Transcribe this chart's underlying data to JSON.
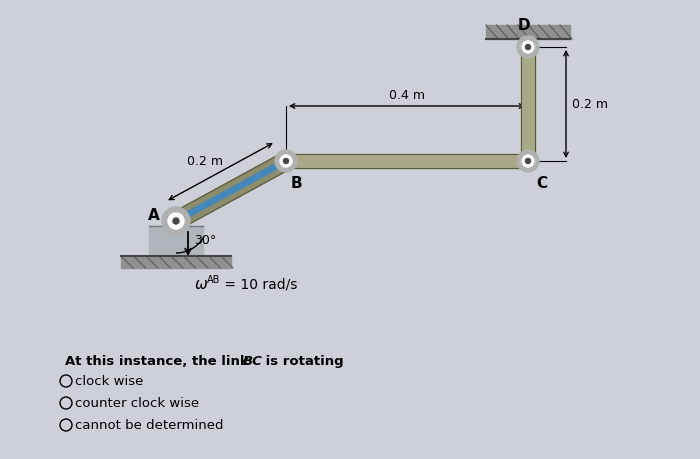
{
  "bg_color": "#cdd0d8",
  "dim_AB": "0.2 m",
  "dim_BC": "0.4 m",
  "dim_CD": "0.2 m",
  "angle_label": "30°",
  "omega_label_sub": "AB",
  "omega_value": " = 10 rad/s",
  "label_A": "A",
  "label_B": "B",
  "label_C": "C",
  "label_D": "D",
  "question": "At this instance, the link ",
  "question_bc": "BC",
  "question_end": " is rotating",
  "options": [
    "clock wise",
    "counter clock wise",
    "cannot be determined"
  ],
  "rod_color": "#8c8c6e",
  "rod_edge": "#5a5a3a",
  "rod_color2": "#a8a888",
  "blue_stripe": "#4488bb",
  "pivot_outer": "#b0b0b0",
  "pivot_inner": "#ffffff",
  "ground_fill": "#909090",
  "ground_hatch": "#606060"
}
